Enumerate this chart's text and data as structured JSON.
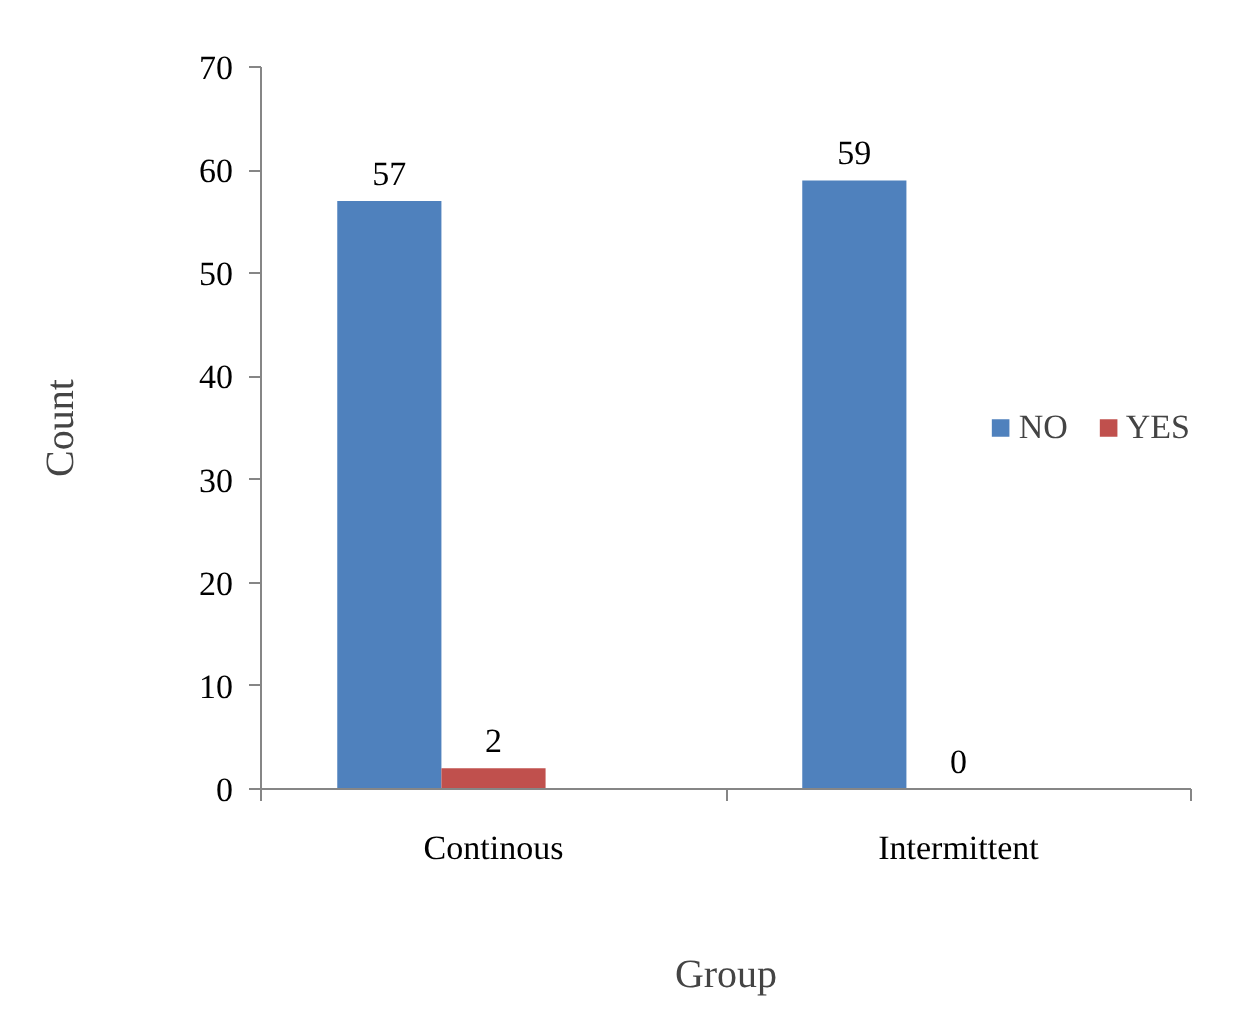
{
  "chart_data": {
    "type": "bar",
    "xlabel": "Group",
    "ylabel": "Count",
    "categories": [
      "Continous",
      "Intermittent"
    ],
    "series": [
      {
        "name": "NO",
        "color": "#4f81bd",
        "values": [
          57,
          59
        ]
      },
      {
        "name": "YES",
        "color": "#c0504d",
        "values": [
          2,
          0
        ]
      }
    ],
    "ylim": [
      0,
      70
    ],
    "yticks": [
      0,
      10,
      20,
      30,
      40,
      50,
      60,
      70
    ],
    "grid": false,
    "legend": "right",
    "data_labels": true
  }
}
